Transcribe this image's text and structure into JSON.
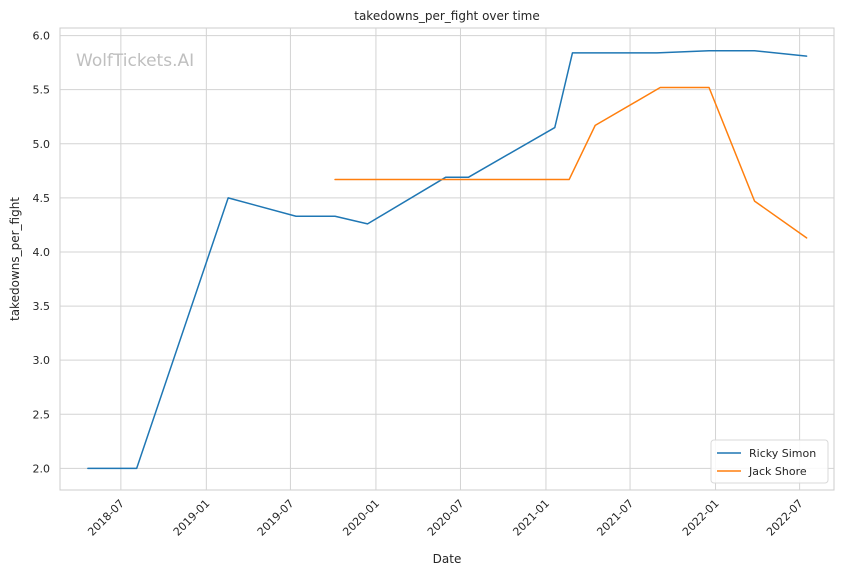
{
  "chart_data": {
    "type": "line",
    "title": "takedowns_per_fight over time",
    "xlabel": "Date",
    "ylabel": "takedowns_per_fight",
    "watermark": "WolfTickets.AI",
    "x_tick_labels": [
      "2018-07",
      "2019-01",
      "2019-07",
      "2020-01",
      "2020-07",
      "2021-01",
      "2021-07",
      "2022-01",
      "2022-07"
    ],
    "x_ticks": [
      "2018-07-01",
      "2019-01-01",
      "2019-07-01",
      "2020-01-01",
      "2020-07-01",
      "2021-01-01",
      "2021-07-01",
      "2022-01-01",
      "2022-07-01"
    ],
    "y_ticks": [
      2.0,
      2.5,
      3.0,
      3.5,
      4.0,
      4.5,
      5.0,
      5.5,
      6.0
    ],
    "y_tick_labels": [
      "2.0",
      "2.5",
      "3.0",
      "3.5",
      "4.0",
      "4.5",
      "5.0",
      "5.5",
      "6.0"
    ],
    "xlim": [
      "2018-02-20",
      "2022-09-13"
    ],
    "ylim": [
      1.8,
      6.07
    ],
    "grid": true,
    "legend_position": "lower-right",
    "series": [
      {
        "name": "Ricky Simon",
        "color": "#1f77b4",
        "x": [
          "2018-04-21",
          "2018-08-04",
          "2019-02-17",
          "2019-07-13",
          "2019-10-05",
          "2019-12-14",
          "2020-05-30",
          "2020-07-18",
          "2021-01-20",
          "2021-02-27",
          "2021-08-28",
          "2021-12-18",
          "2022-03-26",
          "2022-07-16"
        ],
        "values": [
          2.0,
          2.0,
          4.5,
          4.33,
          4.33,
          4.26,
          4.69,
          4.69,
          5.15,
          5.84,
          5.84,
          5.86,
          5.86,
          5.81
        ]
      },
      {
        "name": "Jack Shore",
        "color": "#ff7f0e",
        "x": [
          "2019-10-05",
          "2020-05-30",
          "2021-02-20",
          "2021-04-17",
          "2021-09-04",
          "2021-12-18",
          "2022-03-26",
          "2022-07-16"
        ],
        "values": [
          4.67,
          4.67,
          4.67,
          5.17,
          5.52,
          5.52,
          4.47,
          4.13
        ]
      }
    ]
  }
}
